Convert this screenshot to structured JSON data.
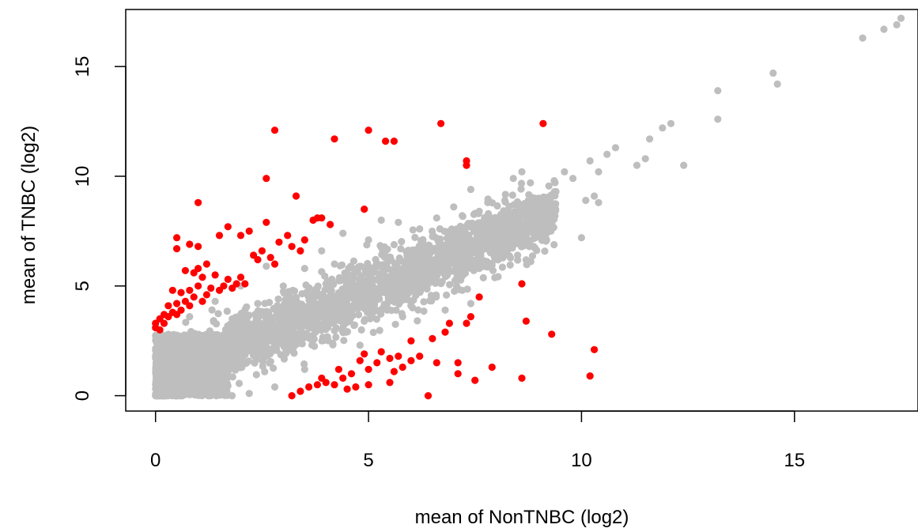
{
  "chart_data": {
    "type": "scatter",
    "title": "",
    "xlabel": "mean of NonTNBC (log2)",
    "ylabel": "mean of TNBC (log2)",
    "xlim": [
      -0.7,
      17.9
    ],
    "ylim": [
      -0.7,
      17.6
    ],
    "xticks": [
      0,
      5,
      10,
      15
    ],
    "yticks": [
      0,
      5,
      10,
      15
    ],
    "grid": false,
    "legend": "none",
    "colors": {
      "background_points": "#bebebe",
      "highlight_points": "#ff0000"
    },
    "series": [
      {
        "color": "#bebebe",
        "points": [
          [
            17.5,
            17.2
          ],
          [
            17.4,
            16.9
          ],
          [
            17.1,
            16.7
          ],
          [
            16.6,
            16.3
          ],
          [
            14.5,
            14.7
          ],
          [
            14.6,
            14.2
          ],
          [
            13.2,
            13.9
          ],
          [
            13.2,
            12.6
          ],
          [
            12.1,
            12.4
          ],
          [
            11.9,
            12.2
          ],
          [
            12.4,
            10.5
          ],
          [
            11.6,
            11.7
          ],
          [
            11.5,
            10.8
          ],
          [
            11.3,
            10.5
          ],
          [
            10.8,
            11.3
          ],
          [
            10.6,
            11.0
          ],
          [
            10.2,
            10.7
          ],
          [
            10.4,
            10.2
          ],
          [
            9.8,
            9.9
          ],
          [
            9.6,
            10.2
          ],
          [
            10.3,
            9.1
          ],
          [
            10.1,
            8.9
          ],
          [
            10.4,
            8.8
          ],
          [
            10.0,
            7.2
          ],
          [
            9.4,
            9.3
          ],
          [
            9.0,
            9.0
          ],
          [
            9.1,
            8.6
          ],
          [
            8.8,
            9.7
          ],
          [
            8.6,
            10.2
          ],
          [
            8.4,
            9.9
          ],
          [
            8.9,
            7.7
          ],
          [
            8.7,
            7.4
          ],
          [
            8.6,
            6.8
          ],
          [
            8.5,
            6.4
          ],
          [
            8.2,
            8.9
          ],
          [
            8.0,
            8.0
          ],
          [
            7.8,
            8.8
          ],
          [
            7.6,
            8.4
          ],
          [
            7.7,
            7.1
          ],
          [
            7.4,
            9.4
          ],
          [
            7.2,
            8.2
          ],
          [
            7.0,
            8.6
          ],
          [
            6.6,
            8.1
          ],
          [
            6.5,
            5.3
          ],
          [
            7.6,
            5.8
          ],
          [
            7.2,
            4.8
          ],
          [
            7.4,
            4.2
          ],
          [
            6.2,
            7.6
          ],
          [
            6.0,
            6.5
          ],
          [
            5.9,
            5.2
          ],
          [
            5.7,
            7.9
          ],
          [
            5.5,
            6.3
          ],
          [
            5.4,
            5.1
          ],
          [
            5.3,
            8.0
          ],
          [
            5.0,
            7.1
          ],
          [
            4.8,
            5.9
          ],
          [
            4.6,
            4.8
          ],
          [
            4.4,
            7.4
          ],
          [
            4.2,
            6.0
          ],
          [
            4.0,
            5.1
          ],
          [
            3.9,
            6.6
          ],
          [
            3.7,
            4.4
          ],
          [
            3.5,
            5.8
          ],
          [
            3.3,
            3.6
          ],
          [
            3.2,
            6.8
          ],
          [
            3.0,
            5.0
          ],
          [
            2.8,
            3.2
          ],
          [
            2.6,
            5.9
          ],
          [
            2.4,
            4.2
          ],
          [
            2.2,
            2.6
          ],
          [
            2.0,
            5.0
          ],
          [
            1.8,
            3.5
          ],
          [
            1.6,
            1.6
          ],
          [
            1.4,
            4.3
          ],
          [
            1.2,
            2.8
          ],
          [
            1.0,
            0.9
          ],
          [
            0.8,
            3.6
          ],
          [
            0.6,
            1.9
          ],
          [
            0.4,
            0.6
          ],
          [
            0.2,
            2.7
          ],
          [
            0.1,
            1.2
          ],
          [
            0.0,
            0.0
          ],
          [
            0.0,
            1.8
          ],
          [
            0.3,
            0.2
          ],
          [
            2.8,
            0.4
          ],
          [
            4.8,
            2.3
          ],
          [
            5.8,
            3.6
          ],
          [
            6.8,
            3.9
          ],
          [
            3.5,
            1.2
          ],
          [
            2.2,
            0.1
          ],
          [
            7.8,
            6.0
          ],
          [
            8.3,
            7.6
          ],
          [
            9.2,
            8.2
          ],
          [
            6.9,
            6.3
          ],
          [
            4.5,
            3.4
          ],
          [
            5.1,
            4.0
          ]
        ],
        "clusters": [
          {
            "type": "band",
            "x_range": [
              0,
              9.4
            ],
            "slope": 0.82,
            "intercept": 0.65,
            "spread": 1.25,
            "count": 2600
          },
          {
            "type": "block",
            "x_range": [
              0,
              1.7
            ],
            "y_range": [
              0,
              2.8
            ],
            "count": 1400
          }
        ]
      },
      {
        "color": "#ff0000",
        "points": [
          [
            2.8,
            12.1
          ],
          [
            4.2,
            11.7
          ],
          [
            5.0,
            12.1
          ],
          [
            5.4,
            11.6
          ],
          [
            5.6,
            11.6
          ],
          [
            6.7,
            12.4
          ],
          [
            9.1,
            12.4
          ],
          [
            7.3,
            10.7
          ],
          [
            7.3,
            10.5
          ],
          [
            2.6,
            9.9
          ],
          [
            3.3,
            9.1
          ],
          [
            1.0,
            8.8
          ],
          [
            4.9,
            8.5
          ],
          [
            3.8,
            8.1
          ],
          [
            3.9,
            8.1
          ],
          [
            3.7,
            8.0
          ],
          [
            4.1,
            7.8
          ],
          [
            2.6,
            7.9
          ],
          [
            1.7,
            7.7
          ],
          [
            1.5,
            7.3
          ],
          [
            0.5,
            7.2
          ],
          [
            2.2,
            7.5
          ],
          [
            2.0,
            7.3
          ],
          [
            3.1,
            7.3
          ],
          [
            2.9,
            7.0
          ],
          [
            3.5,
            7.1
          ],
          [
            3.2,
            6.8
          ],
          [
            1.0,
            6.8
          ],
          [
            0.8,
            6.9
          ],
          [
            0.5,
            6.7
          ],
          [
            2.5,
            6.6
          ],
          [
            2.3,
            6.4
          ],
          [
            3.4,
            6.6
          ],
          [
            2.7,
            6.3
          ],
          [
            1.2,
            6.0
          ],
          [
            1.0,
            5.8
          ],
          [
            2.4,
            6.2
          ],
          [
            2.8,
            6.0
          ],
          [
            0.7,
            5.7
          ],
          [
            0.9,
            5.6
          ],
          [
            1.1,
            5.4
          ],
          [
            1.4,
            5.5
          ],
          [
            1.7,
            5.3
          ],
          [
            2.0,
            5.4
          ],
          [
            1.9,
            5.1
          ],
          [
            1.6,
            5.0
          ],
          [
            1.3,
            4.9
          ],
          [
            1.0,
            5.0
          ],
          [
            0.8,
            4.8
          ],
          [
            0.6,
            4.7
          ],
          [
            0.4,
            4.8
          ],
          [
            1.2,
            4.6
          ],
          [
            0.9,
            4.5
          ],
          [
            0.7,
            4.3
          ],
          [
            0.5,
            4.2
          ],
          [
            0.3,
            4.1
          ],
          [
            1.1,
            4.3
          ],
          [
            0.6,
            3.9
          ],
          [
            0.4,
            3.8
          ],
          [
            0.2,
            3.7
          ],
          [
            0.1,
            3.5
          ],
          [
            0.0,
            3.3
          ],
          [
            0.3,
            3.6
          ],
          [
            0.5,
            3.7
          ],
          [
            0.2,
            3.3
          ],
          [
            0.0,
            3.1
          ],
          [
            0.1,
            3.0
          ],
          [
            0.8,
            4.1
          ],
          [
            1.5,
            4.8
          ],
          [
            1.8,
            4.9
          ],
          [
            2.1,
            5.1
          ],
          [
            8.6,
            5.1
          ],
          [
            7.6,
            4.5
          ],
          [
            8.7,
            3.4
          ],
          [
            7.4,
            3.6
          ],
          [
            9.3,
            2.8
          ],
          [
            10.3,
            2.1
          ],
          [
            10.2,
            0.9
          ],
          [
            8.6,
            0.8
          ],
          [
            7.9,
            1.3
          ],
          [
            7.5,
            0.7
          ],
          [
            7.1,
            1.5
          ],
          [
            7.1,
            1.0
          ],
          [
            7.3,
            3.3
          ],
          [
            6.9,
            3.3
          ],
          [
            6.8,
            2.9
          ],
          [
            6.5,
            2.6
          ],
          [
            6.4,
            0.0
          ],
          [
            6.6,
            1.5
          ],
          [
            6.2,
            1.8
          ],
          [
            6.0,
            1.6
          ],
          [
            5.8,
            1.3
          ],
          [
            5.7,
            1.8
          ],
          [
            5.5,
            1.7
          ],
          [
            5.3,
            2.0
          ],
          [
            5.2,
            1.5
          ],
          [
            5.0,
            1.2
          ],
          [
            4.9,
            1.9
          ],
          [
            4.8,
            1.6
          ],
          [
            4.6,
            1.0
          ],
          [
            4.4,
            0.8
          ],
          [
            4.2,
            0.5
          ],
          [
            4.5,
            0.3
          ],
          [
            4.7,
            0.4
          ],
          [
            5.0,
            0.5
          ],
          [
            5.5,
            0.6
          ],
          [
            5.6,
            1.1
          ],
          [
            6.0,
            2.5
          ],
          [
            4.3,
            1.2
          ],
          [
            3.8,
            0.5
          ],
          [
            3.6,
            0.4
          ],
          [
            3.4,
            0.2
          ],
          [
            3.2,
            0.0
          ],
          [
            3.9,
            0.8
          ],
          [
            4.0,
            0.6
          ]
        ]
      }
    ]
  }
}
